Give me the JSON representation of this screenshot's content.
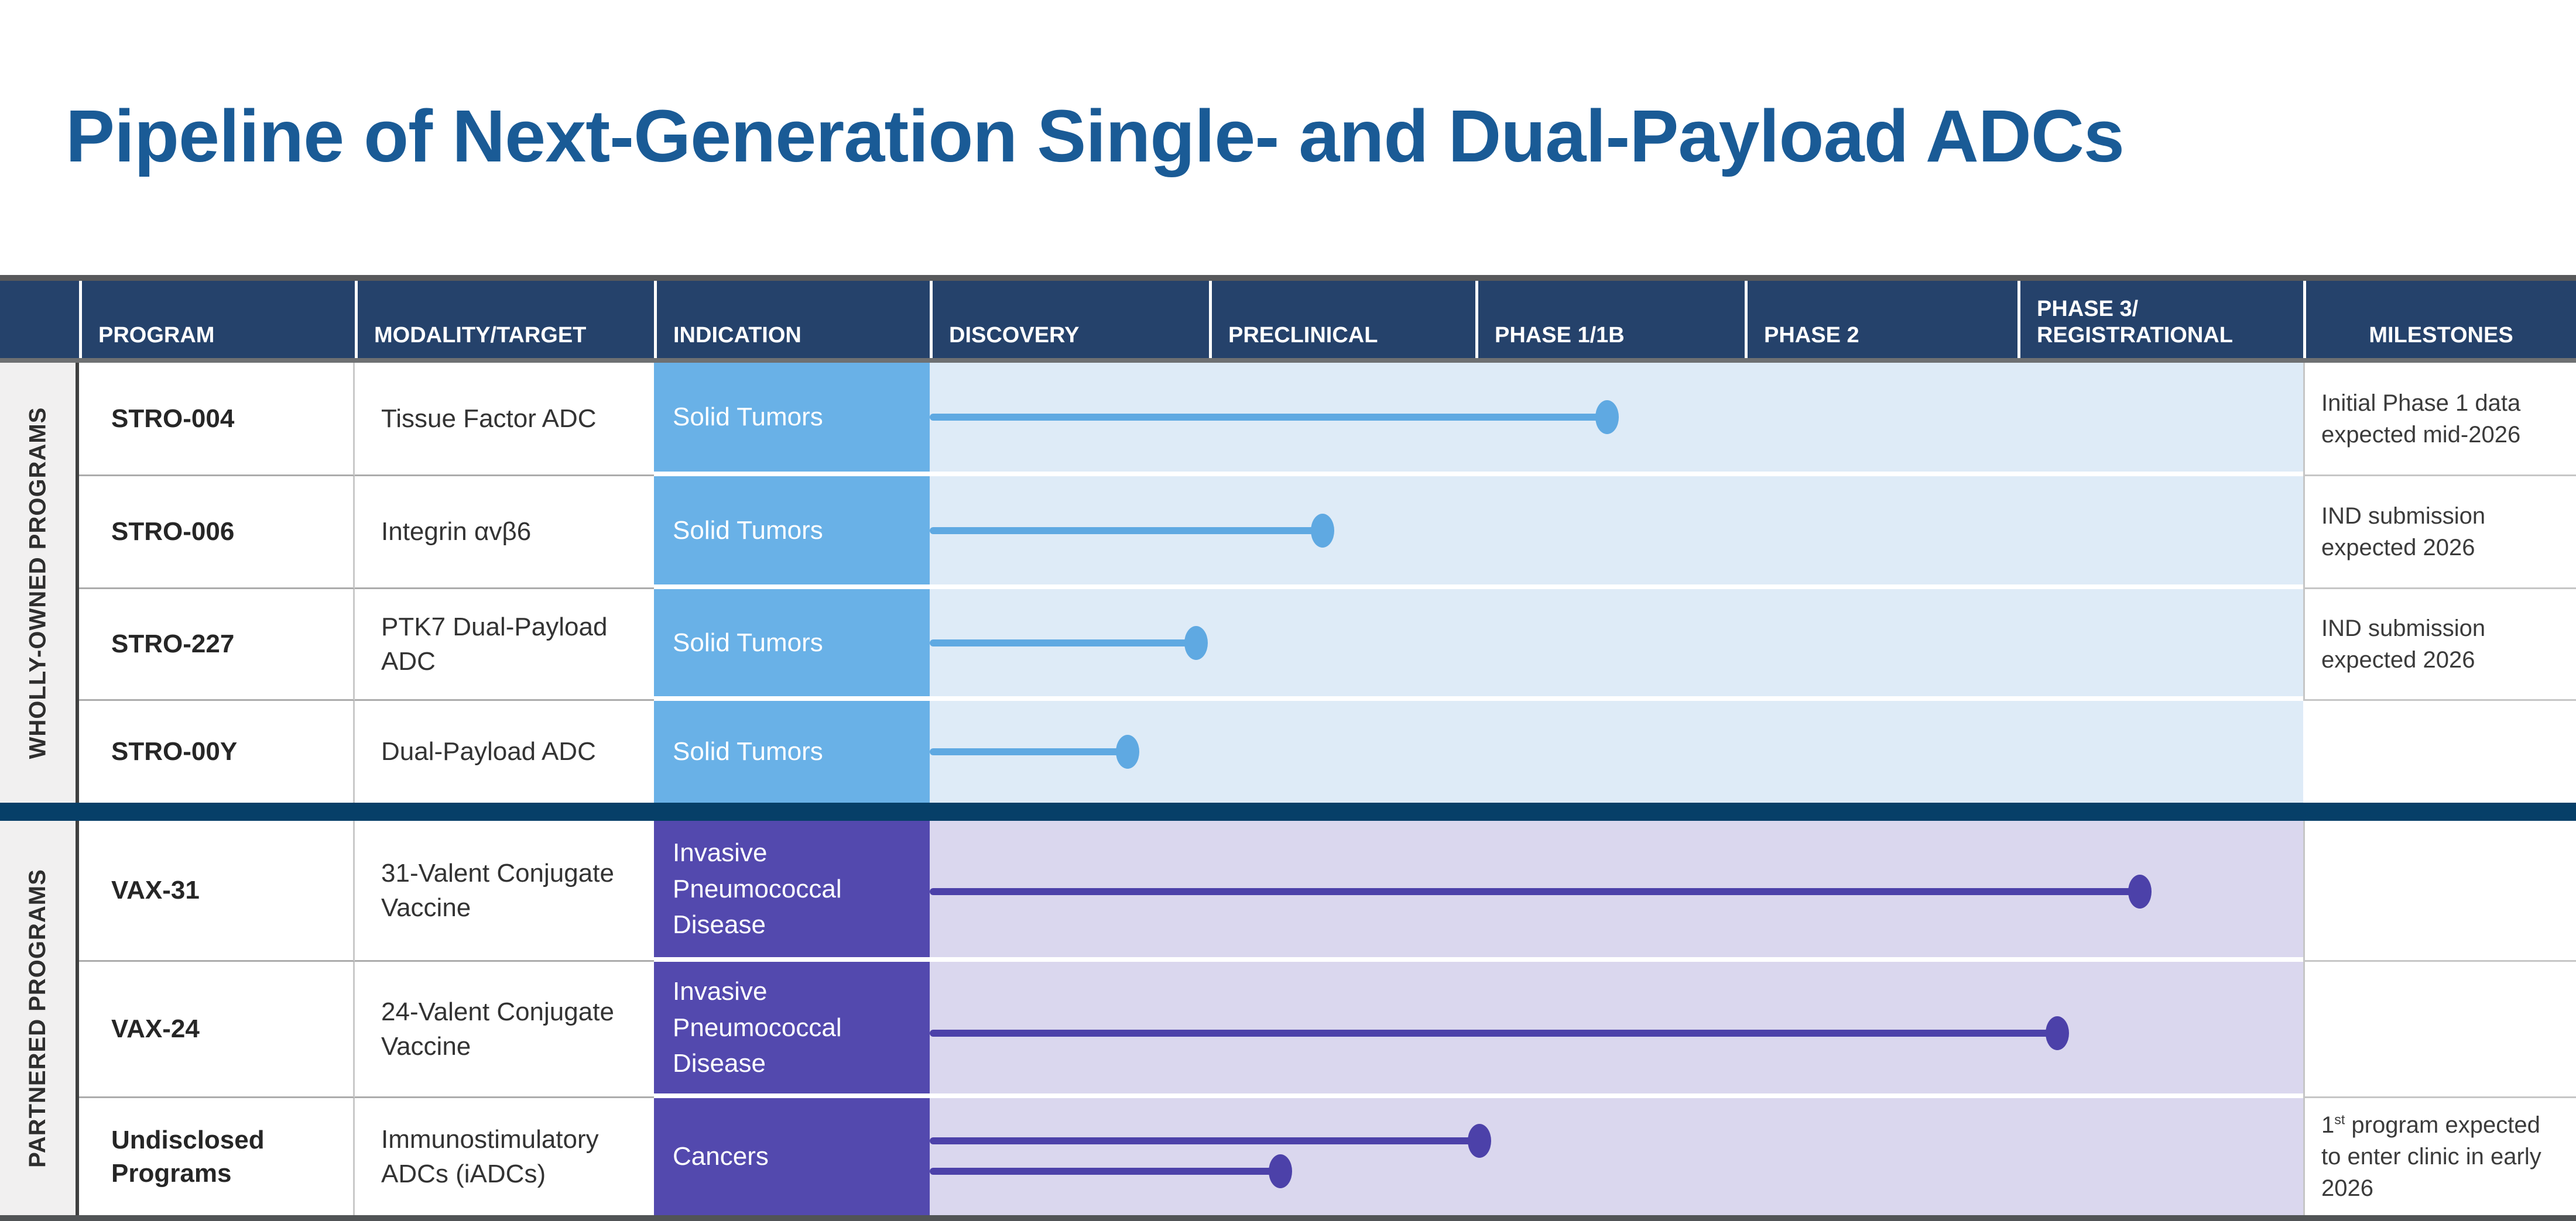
{
  "title": {
    "text": "Pipeline of Next-Generation Single- and Dual-Payload ADCs",
    "color": "#1A5B96"
  },
  "header": {
    "bg": "#25426B",
    "columns": [
      "PROGRAM",
      "MODALITY/TARGET",
      "INDICATION",
      "DISCOVERY",
      "PRECLINICAL",
      "PHASE 1/1B",
      "PHASE 2",
      "PHASE 3/\nREGISTRATIONAL",
      "MILESTONES"
    ]
  },
  "phases_axis": [
    "DISCOVERY",
    "PRECLINICAL",
    "PHASE 1/1B",
    "PHASE 2",
    "PHASE 3/REGISTRATIONAL"
  ],
  "section_divider_color": "#063F68",
  "sections": [
    {
      "label": "WHOLLY-OWNED PROGRAMS",
      "theme": {
        "cell": "#69B1E7",
        "bar": "#5FA9E2",
        "track": "#DEEBF7"
      },
      "rows": [
        {
          "program": "STRO-004",
          "modality": "Tissue Factor ADC",
          "indication": "Solid Tumors",
          "milestone": "Initial Phase 1 data expected mid-2026",
          "bars": [
            {
              "end": 0.494,
              "cy": 0.5
            }
          ]
        },
        {
          "program": "STRO-006",
          "modality": "Integrin αvβ6",
          "indication": "Solid Tumors",
          "milestone": "IND submission expected 2026",
          "bars": [
            {
              "end": 0.287,
              "cy": 0.5
            }
          ]
        },
        {
          "program": "STRO-227",
          "modality": "PTK7 Dual-Payload ADC",
          "indication": "Solid Tumors",
          "milestone": "IND submission expected 2026",
          "bars": [
            {
              "end": 0.195,
              "cy": 0.5
            }
          ]
        },
        {
          "program": "STRO-00Y",
          "modality": "Dual-Payload ADC",
          "indication": "Solid Tumors",
          "milestone": "",
          "bars": [
            {
              "end": 0.145,
              "cy": 0.5
            }
          ]
        }
      ]
    },
    {
      "label": "PARTNERED PROGRAMS",
      "theme": {
        "cell": "#5349AE",
        "bar": "#4C41A9",
        "track": "#DAD7EE"
      },
      "rows": [
        {
          "program": "VAX-31",
          "modality": "31-Valent Conjugate Vaccine",
          "indication": "Invasive Pneumococcal Disease",
          "milestone": "",
          "bars": [
            {
              "end": 0.882,
              "cy": 0.52
            }
          ]
        },
        {
          "program": "VAX-24",
          "modality": "24-Valent Conjugate Vaccine",
          "indication": "Invasive Pneumococcal Disease",
          "milestone": "",
          "bars": [
            {
              "end": 0.822,
              "cy": 0.54
            }
          ]
        },
        {
          "program": "Undisclosed Programs",
          "modality": "Immunostimulatory ADCs (iADCs)",
          "indication": "Cancers",
          "milestone_rich": {
            "pre": "1",
            "sup": "st",
            "post": " program expected to enter clinic in early 2026"
          },
          "bars": [
            {
              "end": 0.401,
              "cy": 0.365
            },
            {
              "end": 0.256,
              "cy": 0.625
            }
          ]
        }
      ]
    }
  ]
}
